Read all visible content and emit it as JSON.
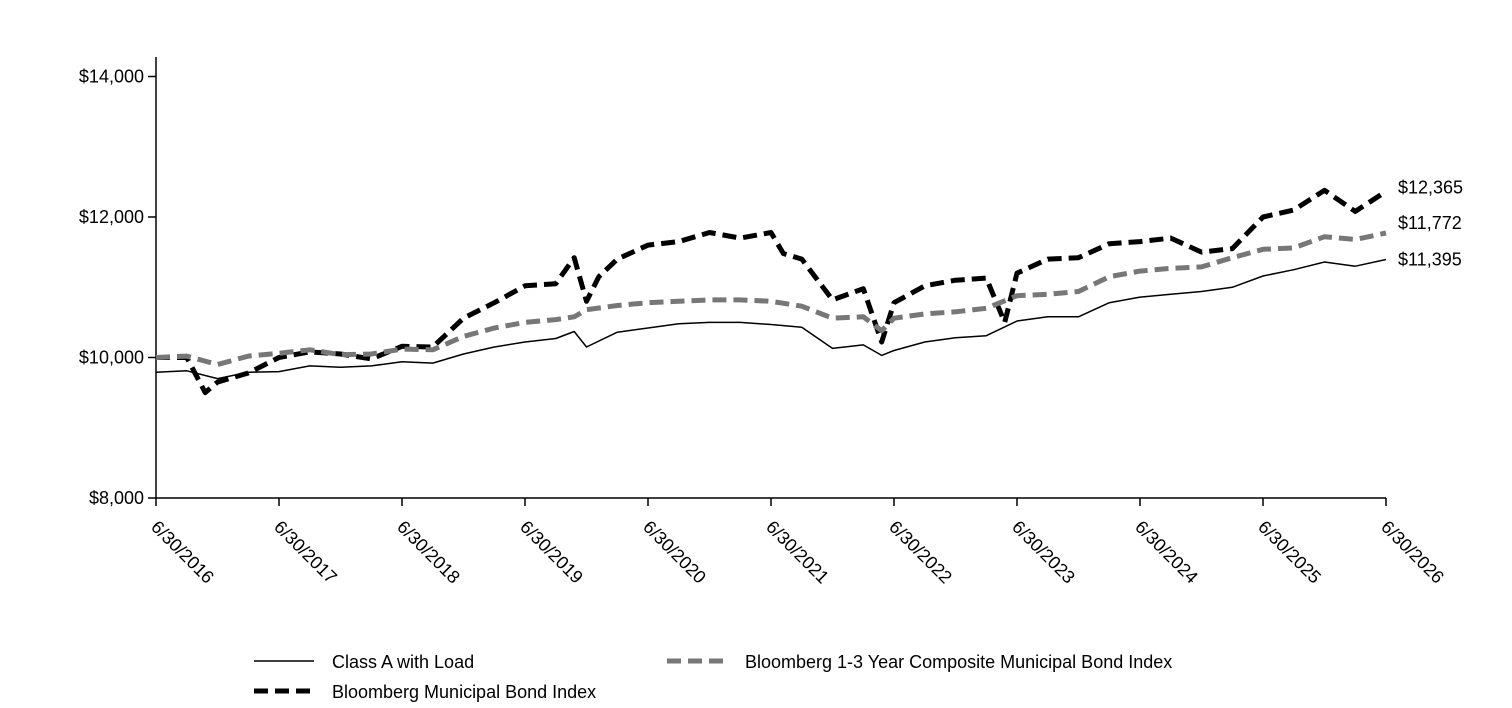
{
  "chart_data": {
    "type": "line",
    "title": "",
    "xlabel": "",
    "ylabel": "",
    "x_ticks": [
      "6/30/2016",
      "6/30/2017",
      "6/30/2018",
      "6/30/2019",
      "6/30/2020",
      "6/30/2021",
      "6/30/2022",
      "6/30/2023",
      "6/30/2024",
      "6/30/2025",
      "6/30/2026"
    ],
    "y_ticks": [
      "$8,000",
      "$10,000",
      "$12,000",
      "$14,000"
    ],
    "ylim": [
      8000,
      14000
    ],
    "xlim": [
      2016.5,
      2026.5
    ],
    "grid": false,
    "legend_position": "bottom",
    "series": [
      {
        "name": "Class A with Load",
        "color": "#000000",
        "style": "solid",
        "end_label": "$11,395",
        "x": [
          2016.5,
          2016.75,
          2017.0,
          2017.25,
          2017.5,
          2017.75,
          2018.0,
          2018.25,
          2018.5,
          2018.75,
          2019.0,
          2019.25,
          2019.5,
          2019.75,
          2019.9,
          2020.0,
          2020.25,
          2020.5,
          2020.75,
          2021.0,
          2021.25,
          2021.5,
          2021.75,
          2022.0,
          2022.25,
          2022.4,
          2022.5,
          2022.75,
          2023.0,
          2023.25,
          2023.5,
          2023.75,
          2024.0,
          2024.25,
          2024.5,
          2024.75,
          2025.0,
          2025.25,
          2025.5,
          2025.75,
          2026.0,
          2026.25,
          2026.5
        ],
        "y": [
          9790,
          9810,
          9700,
          9790,
          9800,
          9880,
          9860,
          9880,
          9940,
          9920,
          10050,
          10150,
          10220,
          10270,
          10370,
          10150,
          10360,
          10420,
          10480,
          10500,
          10500,
          10470,
          10430,
          10130,
          10180,
          10030,
          10100,
          10220,
          10280,
          10310,
          10520,
          10580,
          10580,
          10780,
          10860,
          10900,
          10940,
          11000,
          11160,
          11250,
          11360,
          11300,
          11395
        ]
      },
      {
        "name": "Bloomberg 1-3 Year Composite Municipal Bond Index",
        "color": "#777777",
        "style": "dashed",
        "end_label": "$11,772",
        "x": [
          2016.5,
          2016.75,
          2017.0,
          2017.25,
          2017.5,
          2017.75,
          2018.0,
          2018.25,
          2018.5,
          2018.75,
          2019.0,
          2019.25,
          2019.5,
          2019.75,
          2019.9,
          2020.0,
          2020.25,
          2020.5,
          2020.75,
          2021.0,
          2021.25,
          2021.5,
          2021.75,
          2022.0,
          2022.25,
          2022.4,
          2022.5,
          2022.75,
          2023.0,
          2023.25,
          2023.5,
          2023.75,
          2024.0,
          2024.25,
          2024.5,
          2024.75,
          2025.0,
          2025.25,
          2025.5,
          2025.75,
          2026.0,
          2026.25,
          2026.5
        ],
        "y": [
          10000,
          10020,
          9900,
          10020,
          10060,
          10110,
          10040,
          10050,
          10120,
          10110,
          10300,
          10420,
          10500,
          10540,
          10580,
          10680,
          10740,
          10780,
          10800,
          10820,
          10820,
          10800,
          10730,
          10560,
          10580,
          10380,
          10560,
          10620,
          10650,
          10700,
          10880,
          10900,
          10940,
          11150,
          11230,
          11270,
          11290,
          11420,
          11540,
          11560,
          11720,
          11680,
          11772
        ]
      },
      {
        "name": "Bloomberg Municipal Bond Index",
        "color": "#000000",
        "style": "dashed",
        "end_label": "$12,365",
        "x": [
          2016.5,
          2016.75,
          2016.9,
          2017.0,
          2017.25,
          2017.5,
          2017.75,
          2018.0,
          2018.25,
          2018.5,
          2018.75,
          2019.0,
          2019.25,
          2019.5,
          2019.75,
          2019.9,
          2020.0,
          2020.1,
          2020.25,
          2020.5,
          2020.75,
          2021.0,
          2021.25,
          2021.5,
          2021.6,
          2021.75,
          2022.0,
          2022.25,
          2022.4,
          2022.5,
          2022.75,
          2023.0,
          2023.25,
          2023.4,
          2023.5,
          2023.75,
          2024.0,
          2024.25,
          2024.5,
          2024.75,
          2025.0,
          2025.25,
          2025.5,
          2025.75,
          2026.0,
          2026.25,
          2026.5
        ],
        "y": [
          10000,
          10000,
          9500,
          9650,
          9780,
          10000,
          10080,
          10050,
          9980,
          10160,
          10150,
          10560,
          10780,
          11020,
          11050,
          11420,
          10800,
          11150,
          11400,
          11600,
          11650,
          11780,
          11700,
          11780,
          11480,
          11400,
          10820,
          10980,
          10220,
          10780,
          11020,
          11100,
          11130,
          10500,
          11200,
          11400,
          11420,
          11620,
          11650,
          11700,
          11500,
          11550,
          12000,
          12100,
          12380,
          12080,
          12365
        ]
      }
    ]
  }
}
